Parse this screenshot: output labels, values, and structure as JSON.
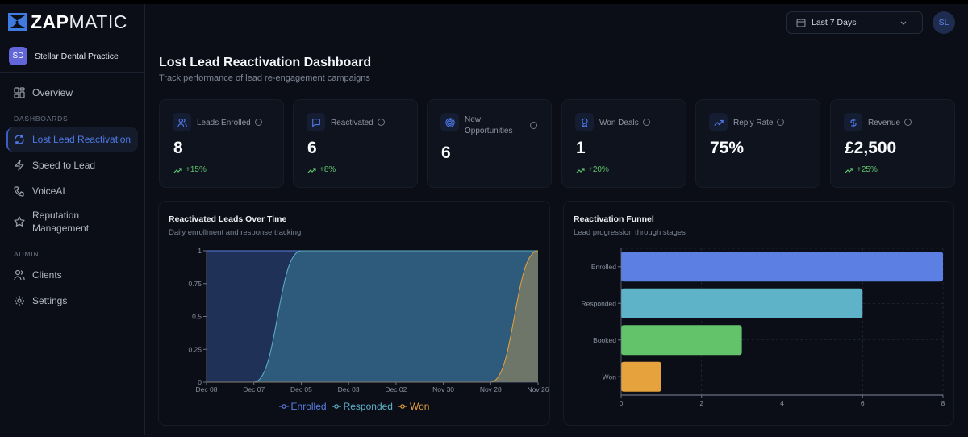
{
  "brand": {
    "name_bold": "ZAP",
    "name_light": "MATIC"
  },
  "client": {
    "initials": "SD",
    "name": "Stellar Dental Practice"
  },
  "sidebar": {
    "overview": "Overview",
    "dashboards_label": "DASHBOARDS",
    "dashboards": [
      {
        "label": "Lost Lead Reactivation",
        "icon": "refresh-icon",
        "active": true
      },
      {
        "label": "Speed to Lead",
        "icon": "lightning-icon"
      },
      {
        "label": "VoiceAI",
        "icon": "phone-icon"
      },
      {
        "label": "Reputation Management",
        "icon": "star-icon"
      }
    ],
    "admin_label": "ADMIN",
    "admin": [
      {
        "label": "Clients",
        "icon": "users-icon"
      },
      {
        "label": "Settings",
        "icon": "gear-icon"
      }
    ]
  },
  "topbar": {
    "date_range": "Last 7 Days",
    "user_initials": "SL"
  },
  "page": {
    "title": "Lost Lead Reactivation Dashboard",
    "subtitle": "Track performance of lead re-engagement campaigns"
  },
  "metrics": [
    {
      "label": "Leads Enrolled",
      "value": "8",
      "trend": "+15%",
      "icon": "users-icon"
    },
    {
      "label": "Reactivated",
      "value": "6",
      "trend": "+8%",
      "icon": "message-icon"
    },
    {
      "label": "New Opportunities",
      "value": "6",
      "trend": null,
      "icon": "target-icon"
    },
    {
      "label": "Won Deals",
      "value": "1",
      "trend": "+20%",
      "icon": "award-icon"
    },
    {
      "label": "Reply Rate",
      "value": "75%",
      "trend": null,
      "icon": "trending-up-icon"
    },
    {
      "label": "Revenue",
      "value": "£2,500",
      "trend": "+25%",
      "icon": "dollar-icon"
    }
  ],
  "colors": {
    "accent": "#4f79e6",
    "enrolled": "#5b7fe3",
    "responded": "#5fb3c9",
    "won": "#e6a23c",
    "booked": "#62c36b",
    "trend_up": "#5fc36e"
  },
  "chart_data": [
    {
      "type": "area",
      "title": "Reactivated Leads Over Time",
      "subtitle": "Daily enrollment and response tracking",
      "categories": [
        "Dec 08",
        "Dec 07",
        "Dec 05",
        "Dec 03",
        "Dec 02",
        "Nov 30",
        "Nov 28",
        "Nov 26"
      ],
      "ylim": [
        0,
        1
      ],
      "yticks": [
        "0",
        "0.25",
        "0.5",
        "0.75",
        "1"
      ],
      "series": [
        {
          "name": "Enrolled",
          "values": [
            1,
            1,
            1,
            1,
            1,
            1,
            1,
            1
          ]
        },
        {
          "name": "Responded",
          "values": [
            0,
            0,
            1,
            1,
            1,
            1,
            1,
            1
          ]
        },
        {
          "name": "Won",
          "values": [
            0,
            0,
            0,
            0,
            0,
            0,
            0,
            1
          ]
        }
      ],
      "legend": "bottom"
    },
    {
      "type": "bar",
      "orientation": "horizontal",
      "title": "Reactivation Funnel",
      "subtitle": "Lead progression through stages",
      "categories": [
        "Enrolled",
        "Responded",
        "Booked",
        "Won"
      ],
      "values": [
        8,
        6,
        3,
        1
      ],
      "xlim": [
        0,
        8
      ],
      "xticks": [
        "0",
        "2",
        "4",
        "6",
        "8"
      ]
    }
  ]
}
